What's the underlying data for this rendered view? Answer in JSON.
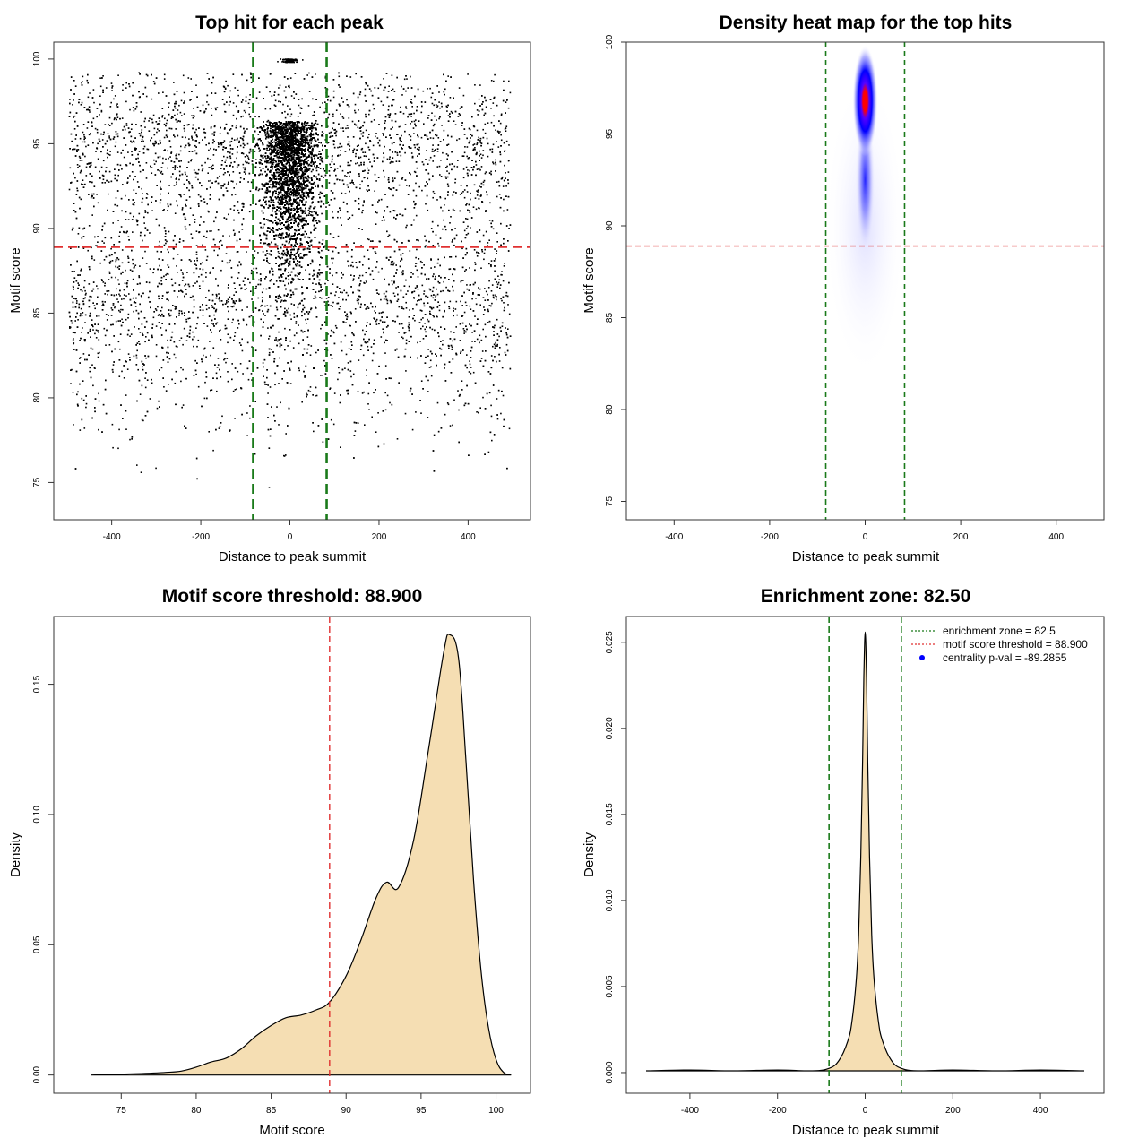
{
  "colors": {
    "green_line": "#1a7a1a",
    "red_line": "#e03030",
    "fill": "#f5deb3",
    "heat_blue": "#0000ff",
    "heat_red": "#ff0000",
    "legend_point": "#0000ff"
  },
  "chart_data": [
    {
      "type": "scatter",
      "title": "Top hit for each peak",
      "xlabel": "Distance to peak summit",
      "ylabel": "Motif score",
      "xlim": [
        -530,
        540
      ],
      "ylim": [
        72.8,
        101.0
      ],
      "xticks": [
        -400,
        -200,
        0,
        200,
        400
      ],
      "yticks": [
        75,
        80,
        85,
        90,
        95,
        100
      ],
      "hlines": [
        88.9
      ],
      "vlines": [
        -82.5,
        82.5
      ],
      "grid": false
    },
    {
      "type": "heatmap",
      "title": "Density heat map for the top hits",
      "xlabel": "Distance to peak summit",
      "ylabel": "Motif score",
      "xlim": [
        -500,
        500
      ],
      "ylim": [
        74.0,
        100.0
      ],
      "xticks": [
        -400,
        -200,
        0,
        200,
        400
      ],
      "yticks": [
        75,
        80,
        85,
        90,
        95,
        100
      ],
      "hlines": [
        88.9
      ],
      "vlines": [
        -82.5,
        82.5
      ],
      "peak": {
        "x": 0,
        "y": 96.8
      },
      "grid": false
    },
    {
      "type": "area",
      "title": "Motif score threshold: 88.900",
      "xlabel": "Motif score",
      "ylabel": "Density",
      "xlim": [
        70.5,
        102.3
      ],
      "ylim": [
        -0.007,
        0.176
      ],
      "xticks": [
        75,
        80,
        85,
        90,
        95,
        100
      ],
      "yticks": [
        0.0,
        0.05,
        0.1,
        0.15
      ],
      "ytick_labels": [
        "0.00",
        "0.05",
        "0.10",
        "0.15"
      ],
      "vlines": [
        88.9
      ],
      "x": [
        73,
        76,
        78,
        79,
        80,
        81,
        82,
        83,
        84,
        85,
        86,
        87,
        88,
        88.9,
        90,
        91,
        92,
        92.7,
        93.5,
        94.5,
        95.5,
        96.5,
        96.9,
        97.5,
        98,
        98.5,
        99,
        99.5,
        100,
        100.5,
        101
      ],
      "y": [
        0.0,
        0.0005,
        0.001,
        0.0015,
        0.003,
        0.005,
        0.0065,
        0.01,
        0.015,
        0.019,
        0.022,
        0.023,
        0.025,
        0.028,
        0.038,
        0.052,
        0.068,
        0.074,
        0.072,
        0.09,
        0.125,
        0.162,
        0.169,
        0.16,
        0.12,
        0.075,
        0.04,
        0.018,
        0.006,
        0.001,
        0.0
      ],
      "grid": false
    },
    {
      "type": "area",
      "title": "Enrichment zone: 82.50",
      "xlabel": "Distance to peak summit",
      "ylabel": "Density",
      "xlim": [
        -545,
        545
      ],
      "ylim": [
        -0.0012,
        0.0265
      ],
      "xticks": [
        -400,
        -200,
        0,
        200,
        400
      ],
      "yticks": [
        0.0,
        0.005,
        0.01,
        0.015,
        0.02,
        0.025
      ],
      "ytick_labels": [
        "0.000",
        "0.005",
        "0.010",
        "0.015",
        "0.020",
        "0.025"
      ],
      "vlines": [
        -82.5,
        82.5
      ],
      "x": [
        -500,
        -400,
        -300,
        -200,
        -120,
        -82,
        -60,
        -40,
        -30,
        -20,
        -15,
        -10,
        -6,
        -3,
        0,
        3,
        6,
        10,
        15,
        20,
        30,
        40,
        60,
        82,
        120,
        200,
        300,
        400,
        500
      ],
      "y": [
        0.0001,
        0.00015,
        0.0001,
        0.00015,
        0.0001,
        0.00025,
        0.0007,
        0.0018,
        0.003,
        0.0055,
        0.008,
        0.0125,
        0.018,
        0.023,
        0.0256,
        0.023,
        0.018,
        0.0125,
        0.008,
        0.0055,
        0.003,
        0.0018,
        0.0007,
        0.00025,
        0.0001,
        0.00015,
        0.0001,
        0.00015,
        0.0001
      ],
      "legend": {
        "position": "top-right",
        "entries": [
          {
            "label": "enrichment zone = 82.5",
            "style": "dotted",
            "color": "#1a7a1a"
          },
          {
            "label": "motif score threshold = 88.900",
            "style": "dotted",
            "color": "#e03030"
          },
          {
            "label": "centrality p-val = -89.2855",
            "style": "point",
            "color": "#0000ff"
          }
        ]
      },
      "grid": false
    }
  ]
}
